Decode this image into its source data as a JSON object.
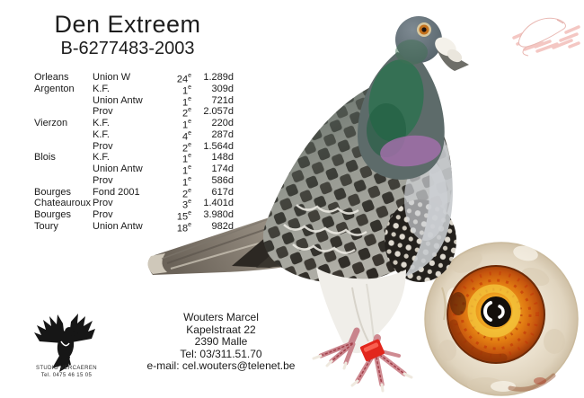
{
  "card": {
    "title": "Den Extreem",
    "ring_number": "B-6277483-2003"
  },
  "results": {
    "rows": [
      {
        "place": "Orleans",
        "club": "Union W",
        "pos": "24",
        "sup": "e",
        "count": "1.289d"
      },
      {
        "place": "Argenton",
        "club": "K.F.",
        "pos": "1",
        "sup": "e",
        "count": "309d"
      },
      {
        "place": "",
        "club": "Union Antw",
        "pos": "1",
        "sup": "e",
        "count": "721d"
      },
      {
        "place": "",
        "club": "Prov",
        "pos": "2",
        "sup": "e",
        "count": "2.057d"
      },
      {
        "place": "Vierzon",
        "club": "K.F.",
        "pos": "1",
        "sup": "e",
        "count": "220d"
      },
      {
        "place": "",
        "club": "K.F.",
        "pos": "4",
        "sup": "e",
        "count": "287d"
      },
      {
        "place": "",
        "club": "Prov",
        "pos": "2",
        "sup": "e",
        "count": "1.564d"
      },
      {
        "place": "Blois",
        "club": "K.F.",
        "pos": "1",
        "sup": "e",
        "count": "148d"
      },
      {
        "place": "",
        "club": "Union Antw",
        "pos": "1",
        "sup": "e",
        "count": "174d"
      },
      {
        "place": "",
        "club": "Prov",
        "pos": "1",
        "sup": "e",
        "count": "586d"
      },
      {
        "place": "Bourges",
        "club": "Fond 2001",
        "pos": "2",
        "sup": "e",
        "count": "617d"
      },
      {
        "place": "Chateauroux",
        "club": "Prov",
        "pos": "3",
        "sup": "e",
        "count": "1.401d"
      },
      {
        "place": "Bourges",
        "club": "Prov",
        "pos": "15",
        "sup": "e",
        "count": "3.980d"
      },
      {
        "place": "Toury",
        "club": "Union Antw",
        "pos": "18",
        "sup": "e",
        "count": "982d"
      }
    ]
  },
  "contact": {
    "name": "Wouters Marcel",
    "street": "Kapelstraat 22",
    "city": "2390 Malle",
    "phone": "Tel: 03/311.51.70",
    "email": "e-mail: cel.wouters@telenet.be"
  },
  "studio": {
    "name": "STUDIO VERCAEREN",
    "phone": "Tel. 0475 46 15 05"
  },
  "graphics": {
    "pigeon_photo": "racing-pigeon-standing-facing-right",
    "eye_photo": "pigeon-eye-close-up",
    "watermark": "pink-dove-studio-watermark",
    "logo": "studio-vercaeren-bird-logo",
    "colors": {
      "text": "#1a1a1a",
      "leg_band_red": "#e2261c",
      "eye_iris_orange": "#e07c12",
      "eye_ring_cream": "#eae0cd",
      "neck_green": "#2e7150",
      "neck_purple": "#a66fae",
      "watermark_pink": "#f0b2ac"
    }
  }
}
